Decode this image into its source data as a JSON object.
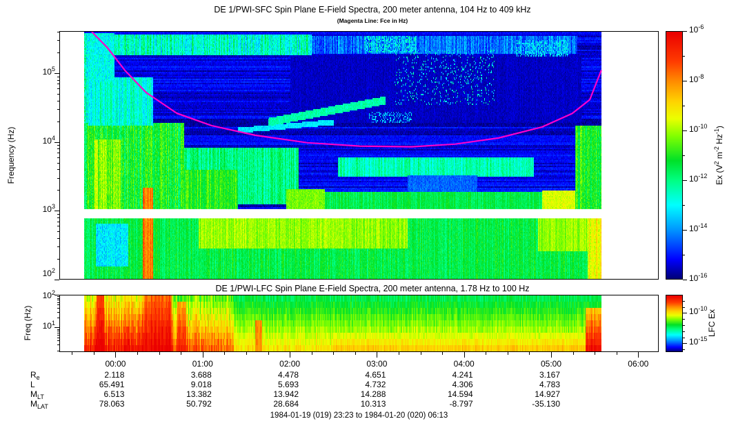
{
  "header": {
    "title": "DE 1/PWI-SFC  Spin Plane E-Field Spectra, 200 meter antenna, 104 Hz to 409 kHz",
    "subtitle": "(Magenta Line: Fce in Hz)"
  },
  "footer": {
    "time_range": "1984-01-19 (019) 23:23 to 1984-01-20 (020) 06:13"
  },
  "colors": {
    "frame": "#000000",
    "background": "#ffffff",
    "magenta_line": "#ff00cc",
    "colormap_stops": [
      [
        0.0,
        0,
        0,
        115
      ],
      [
        0.08,
        0,
        0,
        255
      ],
      [
        0.2,
        0,
        150,
        255
      ],
      [
        0.3,
        0,
        255,
        255
      ],
      [
        0.4,
        0,
        255,
        130
      ],
      [
        0.48,
        0,
        225,
        40
      ],
      [
        0.58,
        130,
        255,
        0
      ],
      [
        0.65,
        235,
        255,
        0
      ],
      [
        0.72,
        255,
        210,
        0
      ],
      [
        0.8,
        255,
        140,
        0
      ],
      [
        0.88,
        255,
        60,
        0
      ],
      [
        1.0,
        235,
        0,
        0
      ]
    ]
  },
  "time_axis": {
    "t_min_hours": -0.645,
    "t_max_hours": 6.235,
    "major_step_hours": 1.0,
    "minor_step_hours": 0.25,
    "hour_labels": [
      "00:00",
      "01:00",
      "02:00",
      "03:00",
      "04:00",
      "05:00",
      "06:00"
    ]
  },
  "ephemeris": {
    "rows": [
      {
        "main": "R",
        "sub": "e",
        "values": [
          "2.118",
          "3.688",
          "4.478",
          "4.651",
          "4.241",
          "3.167"
        ]
      },
      {
        "main": "L",
        "sub": "",
        "values": [
          "65.491",
          "9.018",
          "5.693",
          "4.732",
          "4.306",
          "4.783"
        ]
      },
      {
        "main": "M",
        "sub": "LT",
        "values": [
          "6.513",
          "13.382",
          "13.942",
          "14.288",
          "14.594",
          "14.927"
        ]
      },
      {
        "main": "M",
        "sub": "LAT",
        "values": [
          "78.063",
          "50.792",
          "28.684",
          "10.313",
          "-8.797",
          "-35.130"
        ]
      }
    ]
  },
  "chart_data": [
    {
      "type": "heatmap",
      "subtype": "spectrogram",
      "title": "DE 1/PWI-SFC  Spin Plane E-Field Spectra, 200 meter antenna, 104 Hz to 409 kHz",
      "annotation": "(Magenta Line: Fce in Hz)",
      "ylabel": "Frequency (Hz)",
      "pow_base": "10",
      "y_log_range": [
        2.0,
        5.612
      ],
      "y_tick_exponents": [
        2,
        3,
        4,
        5
      ],
      "x_range_hours": [
        -0.645,
        6.235
      ],
      "data_t_range": [
        -0.37,
        5.583
      ],
      "white_gap_log_f": [
        2.885,
        3.02
      ],
      "grid": false,
      "colorbar": {
        "label_parts": [
          {
            "text": "Ex (V"
          },
          {
            "sup": "2"
          },
          {
            "text": " m"
          },
          {
            "sup": "-2"
          },
          {
            "text": " Hz"
          },
          {
            "sup": "-1"
          },
          {
            "text": ")"
          }
        ],
        "tick_exponents": [
          -6,
          -8,
          -10,
          -12,
          -14,
          -16
        ],
        "minor_tick_exponents": [
          -7,
          -9,
          -11,
          -13,
          -15
        ],
        "scale_log_range": [
          -16,
          -6
        ]
      },
      "base_level_log": -15.35,
      "fce_line": {
        "color": "#ff00cc",
        "points_t_logf": [
          [
            -0.28,
            5.612
          ],
          [
            -0.1,
            5.38
          ],
          [
            0.1,
            5.05
          ],
          [
            0.35,
            4.72
          ],
          [
            0.7,
            4.42
          ],
          [
            1.1,
            4.24
          ],
          [
            1.6,
            4.1
          ],
          [
            2.2,
            3.99
          ],
          [
            2.8,
            3.94
          ],
          [
            3.4,
            3.93
          ],
          [
            3.9,
            3.97
          ],
          [
            4.4,
            4.06
          ],
          [
            4.9,
            4.22
          ],
          [
            5.25,
            4.42
          ],
          [
            5.45,
            4.62
          ],
          [
            5.583,
            5.05
          ]
        ]
      },
      "features": [
        {
          "t": [
            -0.37,
            -0.295
          ],
          "f": [
            2.0,
            5.61
          ],
          "v": -11.9,
          "noise": 1.8,
          "stripes": 1
        },
        {
          "t": [
            2.0,
            5.35
          ],
          "f": [
            4.3,
            5.28
          ],
          "v": -15.55,
          "noise": 0.3
        },
        {
          "t": [
            -0.37,
            5.583
          ],
          "f": [
            2.0,
            2.95
          ],
          "v": -11.45,
          "noise": 0.7,
          "stripes": 1
        },
        {
          "t": [
            0.95,
            3.35
          ],
          "f": [
            2.45,
            2.93
          ],
          "v": -10.1,
          "noise": 0.6,
          "stripes": 1
        },
        {
          "t": [
            -0.24,
            0.14
          ],
          "f": [
            2.2,
            2.82
          ],
          "v": -13.2,
          "noise": 0.8
        },
        {
          "t": [
            4.85,
            5.45
          ],
          "f": [
            2.42,
            2.93
          ],
          "v": -10.1,
          "noise": 0.5,
          "stripes": 1
        },
        {
          "t": [
            5.42,
            5.583
          ],
          "f": [
            2.0,
            2.95
          ],
          "v": -9.2,
          "noise": 0.8,
          "stripes": 1
        },
        {
          "t": [
            -0.37,
            0.78
          ],
          "f": [
            2.95,
            4.3
          ],
          "v": -11.2,
          "noise": 1.1,
          "stripes": 1
        },
        {
          "t": [
            -0.33,
            0.42
          ],
          "f": [
            4.25,
            4.95
          ],
          "v": -12.7,
          "noise": 0.9,
          "stripes": 1
        },
        {
          "t": [
            -0.26,
            0.06
          ],
          "f": [
            2.95,
            4.05
          ],
          "v": -10.2,
          "noise": 0.9,
          "stripes": 1
        },
        {
          "t": [
            0.3,
            0.42
          ],
          "f": [
            2.0,
            3.35
          ],
          "v": -7.9,
          "noise": 0.7,
          "stripes": 1
        },
        {
          "t": [
            0.78,
            2.1
          ],
          "f": [
            3.1,
            3.92
          ],
          "v": -12.0,
          "noise": 0.9,
          "stripes": 1
        },
        {
          "t": [
            0.78,
            1.4
          ],
          "f": [
            2.98,
            3.6
          ],
          "v": -10.9,
          "noise": 0.8,
          "stripes": 1
        },
        {
          "t": [
            2.1,
            5.42
          ],
          "f": [
            2.95,
            3.28
          ],
          "v": -11.5,
          "noise": 0.6,
          "stripes": 1
        },
        {
          "t": [
            1.95,
            2.4
          ],
          "f": [
            3.02,
            3.32
          ],
          "v": -10.3,
          "noise": 0.5
        },
        {
          "t": [
            2.55,
            4.8
          ],
          "f": [
            3.5,
            3.78
          ],
          "v": -12.4,
          "noise": 0.8,
          "stripes": 1
        },
        {
          "t": [
            3.35,
            4.15
          ],
          "f": [
            3.28,
            3.52
          ],
          "v": -14.4,
          "noise": 0.5
        },
        {
          "t": [
            4.9,
            5.35
          ],
          "f": [
            2.98,
            3.3
          ],
          "v": -9.6,
          "noise": 0.5
        },
        {
          "t": [
            5.28,
            5.583
          ],
          "f": [
            2.95,
            4.25
          ],
          "v": -11.0,
          "noise": 1.0,
          "stripes": 1
        },
        {
          "t": [
            -0.3,
            2.25
          ],
          "f": [
            5.28,
            5.585
          ],
          "v": -12.6,
          "noise": 1.3,
          "stripes": 1
        },
        {
          "t": [
            2.25,
            5.3
          ],
          "f": [
            5.3,
            5.56
          ],
          "v": -14.3,
          "noise": 1.0,
          "stripes": 1
        },
        {
          "t": [
            -0.33,
            -0.02
          ],
          "f": [
            4.9,
            5.6
          ],
          "v": -12.9,
          "noise": 0.9
        },
        {
          "t": [
            2.85,
            3.45
          ],
          "f": [
            5.32,
            5.56
          ],
          "v": -13.0,
          "noise": 1.1,
          "stripes": 1,
          "sparse": 0.55
        },
        {
          "t": [
            4.6,
            5.2
          ],
          "f": [
            5.25,
            5.5
          ],
          "v": -13.3,
          "noise": 1.2,
          "sparse": 0.5
        },
        {
          "t": [
            3.2,
            4.35
          ],
          "f": [
            4.55,
            5.35
          ],
          "v": -12.8,
          "noise": 1.0,
          "sparse": 0.1
        },
        {
          "t": [
            2.9,
            3.4
          ],
          "f": [
            4.3,
            4.45
          ],
          "v": -13.4,
          "noise": 0.8,
          "sparse": 0.3
        },
        {
          "diag": 1,
          "t": [
            1.4,
            2.5
          ],
          "f": [
            4.18,
            4.3
          ],
          "th": 0.04,
          "v": -13.2,
          "noise": 0.5
        },
        {
          "diag": 1,
          "t": [
            1.75,
            3.1
          ],
          "f": [
            4.3,
            4.62
          ],
          "th": 0.06,
          "v": -12.3,
          "noise": 0.5
        }
      ]
    },
    {
      "type": "heatmap",
      "subtype": "spectrogram",
      "title": "DE 1/PWI-LFC  Spin Plane E-Field Spectra, 200 meter antenna, 1.78 Hz to 100 Hz",
      "ylabel": "Freq (Hz)",
      "pow_base": "10",
      "y_log_range": [
        0.25,
        2.0
      ],
      "y_tick_exponents": [
        1,
        2
      ],
      "x_range_hours": [
        -0.645,
        6.235
      ],
      "data_t_range": [
        -0.37,
        5.583
      ],
      "band_count": 9,
      "grid": false,
      "colorbar": {
        "label_parts": [
          {
            "text": "LFC Ex"
          }
        ],
        "tick_exponents": [
          -10,
          -15
        ],
        "minor_tick_exponents": [
          -8,
          -9,
          -11,
          -12,
          -13,
          -14,
          -16
        ],
        "scale_log_range": [
          -16.43,
          -7.0
        ]
      },
      "features": [
        {
          "t": [
            -0.37,
            5.583
          ],
          "f": [
            0.25,
            2.0
          ],
          "v": -9.8,
          "v2": -12.3,
          "noise": 0.55,
          "stripes": 1
        },
        {
          "t": [
            2.5,
            5.45
          ],
          "f": [
            0.25,
            0.8
          ],
          "v": -9.4,
          "v2": -10.5,
          "noise": 0.4,
          "stripes": 1
        },
        {
          "t": [
            -0.37,
            0.65
          ],
          "f": [
            0.25,
            2.0
          ],
          "v": -7.3,
          "v2": -10.3,
          "noise": 0.9,
          "stripes": 1
        },
        {
          "t": [
            0.65,
            1.35
          ],
          "f": [
            0.25,
            2.0
          ],
          "v": -8.4,
          "v2": -11.4,
          "noise": 0.9,
          "stripes": 1
        },
        {
          "t": [
            -0.23,
            -0.14
          ],
          "f": [
            0.25,
            2.0
          ],
          "v": -6.8,
          "v2": -8.2,
          "noise": 0.4
        },
        {
          "t": [
            0.32,
            0.64
          ],
          "f": [
            0.25,
            2.0
          ],
          "v": -6.9,
          "v2": -8.6,
          "noise": 0.6,
          "stripes": 1
        },
        {
          "t": [
            0.7,
            0.8
          ],
          "f": [
            0.25,
            1.75
          ],
          "v": -7.5,
          "v2": -9.2,
          "noise": 0.5
        },
        {
          "t": [
            1.6,
            1.68
          ],
          "f": [
            0.25,
            1.3
          ],
          "v": -8.9,
          "noise": 0.4
        },
        {
          "t": [
            5.4,
            5.583
          ],
          "f": [
            0.25,
            1.7
          ],
          "v": -7.2,
          "v2": -9.8,
          "noise": 0.6,
          "stripes": 1
        }
      ]
    }
  ]
}
